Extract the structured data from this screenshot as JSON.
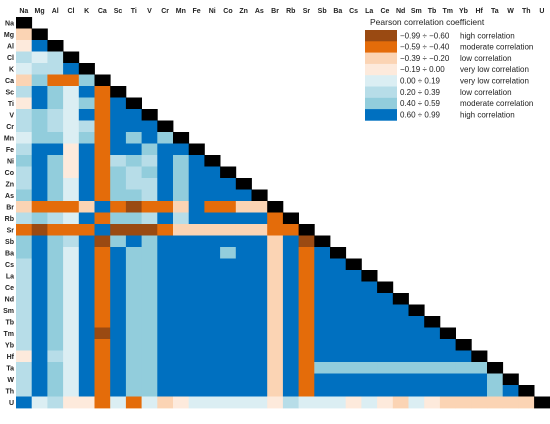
{
  "chart_data": {
    "type": "heatmap",
    "elements": [
      "Na",
      "Mg",
      "Al",
      "Cl",
      "K",
      "Ca",
      "Sc",
      "Ti",
      "V",
      "Cr",
      "Mn",
      "Fe",
      "Ni",
      "Co",
      "Zn",
      "As",
      "Br",
      "Rb",
      "Sr",
      "Sb",
      "Ba",
      "Cs",
      "La",
      "Ce",
      "Nd",
      "Sm",
      "Tb",
      "Tm",
      "Yb",
      "Hf",
      "Ta",
      "W",
      "Th",
      "U"
    ],
    "row_labels": [
      "Na",
      "Mg",
      "Al",
      "Cl",
      "K",
      "Ca",
      "Sc",
      "Ti",
      "V",
      "Cr",
      "Mn",
      "Fe",
      "Ni",
      "Co",
      "Zn",
      "As",
      "Br",
      "Rb",
      "Sr",
      "Sb",
      "Ba",
      "Cs",
      "La",
      "Ce",
      "Nd",
      "Sm",
      "Tb",
      "Tm",
      "Yb",
      "Hf",
      "Ta",
      "W",
      "Th",
      "U"
    ],
    "layout": "lower-triangular",
    "legend": {
      "title": "Pearson correlation coefficient",
      "placement": "top-right",
      "entries": [
        {
          "range": "−0.99 ÷ −0.60",
          "label": "high correlation",
          "color": "#9a4a12"
        },
        {
          "range": "−0.59 ÷ −0.40",
          "label": "moderate correlation",
          "color": "#e46c0a"
        },
        {
          "range": "−0.39 ÷ −0.20",
          "label": "low correlation",
          "color": "#fbd4b4"
        },
        {
          "range": "−0.19 ÷ 0.00",
          "label": "very low correlation",
          "color": "#fdeadc"
        },
        {
          "range": "0.00 ÷ 0.19",
          "label": "very low correlation",
          "color": "#dbeef3"
        },
        {
          "range": "0.20 ÷ 0.39",
          "label": "low correlation",
          "color": "#b7dde8"
        },
        {
          "range": "0.40 ÷ 0.59",
          "label": "moderate correlation",
          "color": "#92cddc"
        },
        {
          "range": "0.60 ÷ 0.99",
          "label": "high correlation",
          "color": "#0070c0"
        }
      ]
    },
    "diagonal_color": "#000000",
    "category_codes": {
      "-4": "−0.99 ÷ −0.60",
      "-3": "−0.59 ÷ −0.40",
      "-2": "−0.39 ÷ −0.20",
      "-1": "−0.19 ÷ 0.00",
      "1": "0.00 ÷ 0.19",
      "2": "0.20 ÷ 0.39",
      "3": "0.40 ÷ 0.59",
      "4": "0.60 ÷ 0.99"
    },
    "lower_triangle_categories": [
      [],
      [
        -2
      ],
      [
        -1,
        4
      ],
      [
        2,
        1,
        2
      ],
      [
        1,
        2,
        2,
        4
      ],
      [
        -2,
        3,
        -3,
        -3,
        3
      ],
      [
        2,
        4,
        3,
        1,
        4,
        -3
      ],
      [
        -1,
        4,
        3,
        1,
        3,
        -3,
        4
      ],
      [
        2,
        3,
        2,
        1,
        4,
        -3,
        4,
        4
      ],
      [
        2,
        3,
        2,
        1,
        2,
        -3,
        4,
        4,
        4
      ],
      [
        1,
        3,
        3,
        1,
        3,
        -3,
        4,
        3,
        4,
        3
      ],
      [
        2,
        4,
        4,
        -1,
        4,
        -3,
        4,
        4,
        3,
        4,
        4
      ],
      [
        3,
        4,
        3,
        -1,
        4,
        -3,
        2,
        3,
        2,
        4,
        3,
        4
      ],
      [
        2,
        4,
        3,
        -1,
        4,
        -3,
        3,
        2,
        3,
        4,
        3,
        4,
        4
      ],
      [
        2,
        4,
        3,
        1,
        4,
        -3,
        3,
        2,
        2,
        4,
        3,
        4,
        4,
        4
      ],
      [
        3,
        4,
        3,
        1,
        4,
        -3,
        3,
        3,
        2,
        4,
        3,
        4,
        4,
        4,
        4
      ],
      [
        -2,
        -3,
        -3,
        -3,
        -2,
        4,
        -3,
        -4,
        -3,
        -3,
        -2,
        4,
        -3,
        -3,
        -2,
        -2
      ],
      [
        2,
        3,
        2,
        1,
        4,
        -3,
        3,
        3,
        2,
        4,
        2,
        4,
        4,
        4,
        4,
        4,
        -3
      ],
      [
        -3,
        -4,
        -3,
        -3,
        -3,
        4,
        -4,
        -4,
        -4,
        -3,
        -2,
        -2,
        -2,
        -2,
        -2,
        -2,
        -3,
        -3
      ],
      [
        3,
        4,
        3,
        2,
        4,
        -4,
        3,
        4,
        3,
        4,
        4,
        4,
        4,
        4,
        4,
        4,
        -2,
        4,
        -4
      ],
      [
        3,
        4,
        3,
        1,
        4,
        -3,
        4,
        3,
        3,
        4,
        4,
        4,
        4,
        3,
        4,
        4,
        -2,
        4,
        -3,
        4
      ],
      [
        2,
        4,
        3,
        1,
        4,
        -3,
        4,
        3,
        3,
        4,
        4,
        4,
        4,
        4,
        4,
        4,
        -2,
        4,
        -3,
        4,
        4
      ],
      [
        2,
        4,
        3,
        1,
        4,
        -3,
        4,
        3,
        3,
        4,
        4,
        4,
        4,
        4,
        4,
        4,
        -2,
        4,
        -3,
        4,
        4,
        4
      ],
      [
        2,
        4,
        3,
        1,
        4,
        -3,
        4,
        3,
        3,
        4,
        4,
        4,
        4,
        4,
        4,
        4,
        -2,
        4,
        -3,
        4,
        4,
        4,
        4
      ],
      [
        2,
        4,
        3,
        1,
        4,
        -3,
        4,
        3,
        3,
        4,
        4,
        4,
        4,
        4,
        4,
        4,
        -2,
        4,
        -3,
        4,
        4,
        4,
        4,
        4
      ],
      [
        2,
        4,
        3,
        1,
        4,
        -3,
        4,
        3,
        3,
        4,
        4,
        4,
        4,
        4,
        4,
        4,
        -2,
        4,
        -3,
        4,
        4,
        4,
        4,
        4,
        4
      ],
      [
        2,
        4,
        3,
        1,
        4,
        -3,
        4,
        3,
        3,
        4,
        4,
        4,
        4,
        4,
        4,
        4,
        -2,
        4,
        -3,
        4,
        4,
        4,
        4,
        4,
        4,
        4
      ],
      [
        2,
        4,
        3,
        1,
        4,
        -4,
        4,
        3,
        3,
        4,
        4,
        4,
        4,
        4,
        4,
        4,
        -2,
        4,
        -3,
        4,
        4,
        4,
        4,
        4,
        4,
        4,
        4
      ],
      [
        2,
        4,
        3,
        1,
        4,
        -3,
        4,
        3,
        3,
        4,
        4,
        4,
        4,
        4,
        4,
        4,
        -2,
        4,
        -3,
        4,
        4,
        4,
        4,
        4,
        4,
        4,
        4,
        4
      ],
      [
        -1,
        4,
        2,
        1,
        4,
        -3,
        4,
        3,
        3,
        4,
        4,
        4,
        4,
        4,
        4,
        4,
        -2,
        4,
        -3,
        4,
        4,
        4,
        4,
        4,
        4,
        4,
        4,
        4,
        4
      ],
      [
        2,
        4,
        3,
        1,
        4,
        -3,
        4,
        3,
        3,
        4,
        4,
        4,
        4,
        4,
        4,
        4,
        -2,
        4,
        -3,
        3,
        3,
        3,
        3,
        3,
        3,
        3,
        3,
        3,
        3,
        3
      ],
      [
        2,
        4,
        3,
        1,
        4,
        -3,
        4,
        3,
        3,
        4,
        4,
        4,
        4,
        4,
        4,
        4,
        -2,
        4,
        -3,
        4,
        4,
        4,
        4,
        4,
        4,
        4,
        4,
        4,
        4,
        4,
        3
      ],
      [
        2,
        4,
        3,
        1,
        4,
        -3,
        4,
        3,
        3,
        4,
        4,
        4,
        4,
        4,
        4,
        4,
        -2,
        4,
        -3,
        4,
        4,
        4,
        4,
        4,
        4,
        4,
        4,
        4,
        4,
        4,
        3,
        4
      ],
      [
        4,
        1,
        2,
        -1,
        -1,
        -3,
        1,
        -3,
        1,
        -2,
        -1,
        1,
        1,
        1,
        1,
        1,
        -1,
        2,
        1,
        1,
        1,
        -1,
        1,
        -1,
        -2,
        1,
        -1,
        -2,
        -2,
        -2,
        -2,
        -2,
        -2
      ]
    ]
  }
}
